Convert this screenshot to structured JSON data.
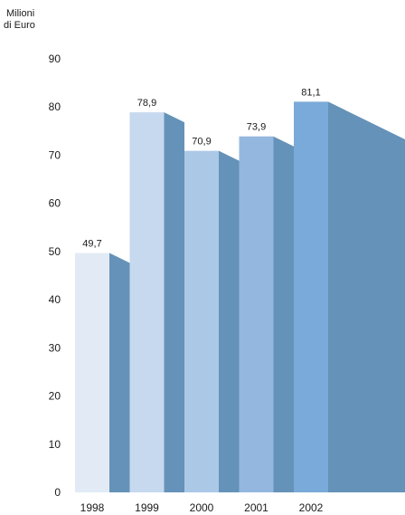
{
  "chart_data": {
    "type": "bar",
    "unit_label": [
      "Milioni",
      "di Euro"
    ],
    "categories": [
      "1998",
      "1999",
      "2000",
      "2001",
      "2002"
    ],
    "values": [
      49.7,
      78.9,
      70.9,
      73.9,
      81.1
    ],
    "value_labels": [
      "49,7",
      "78,9",
      "70,9",
      "73,9",
      "81,1"
    ],
    "ylim": [
      0,
      90
    ],
    "yticks": [
      "0",
      "10",
      "20",
      "30",
      "40",
      "50",
      "60",
      "70",
      "80",
      "90"
    ],
    "grid": false,
    "colors": {
      "bars": [
        "#e2ebf5",
        "#c6d9ee",
        "#acc8e7",
        "#94b7df",
        "#7aaad9"
      ],
      "shadow": "#6592b8"
    }
  }
}
